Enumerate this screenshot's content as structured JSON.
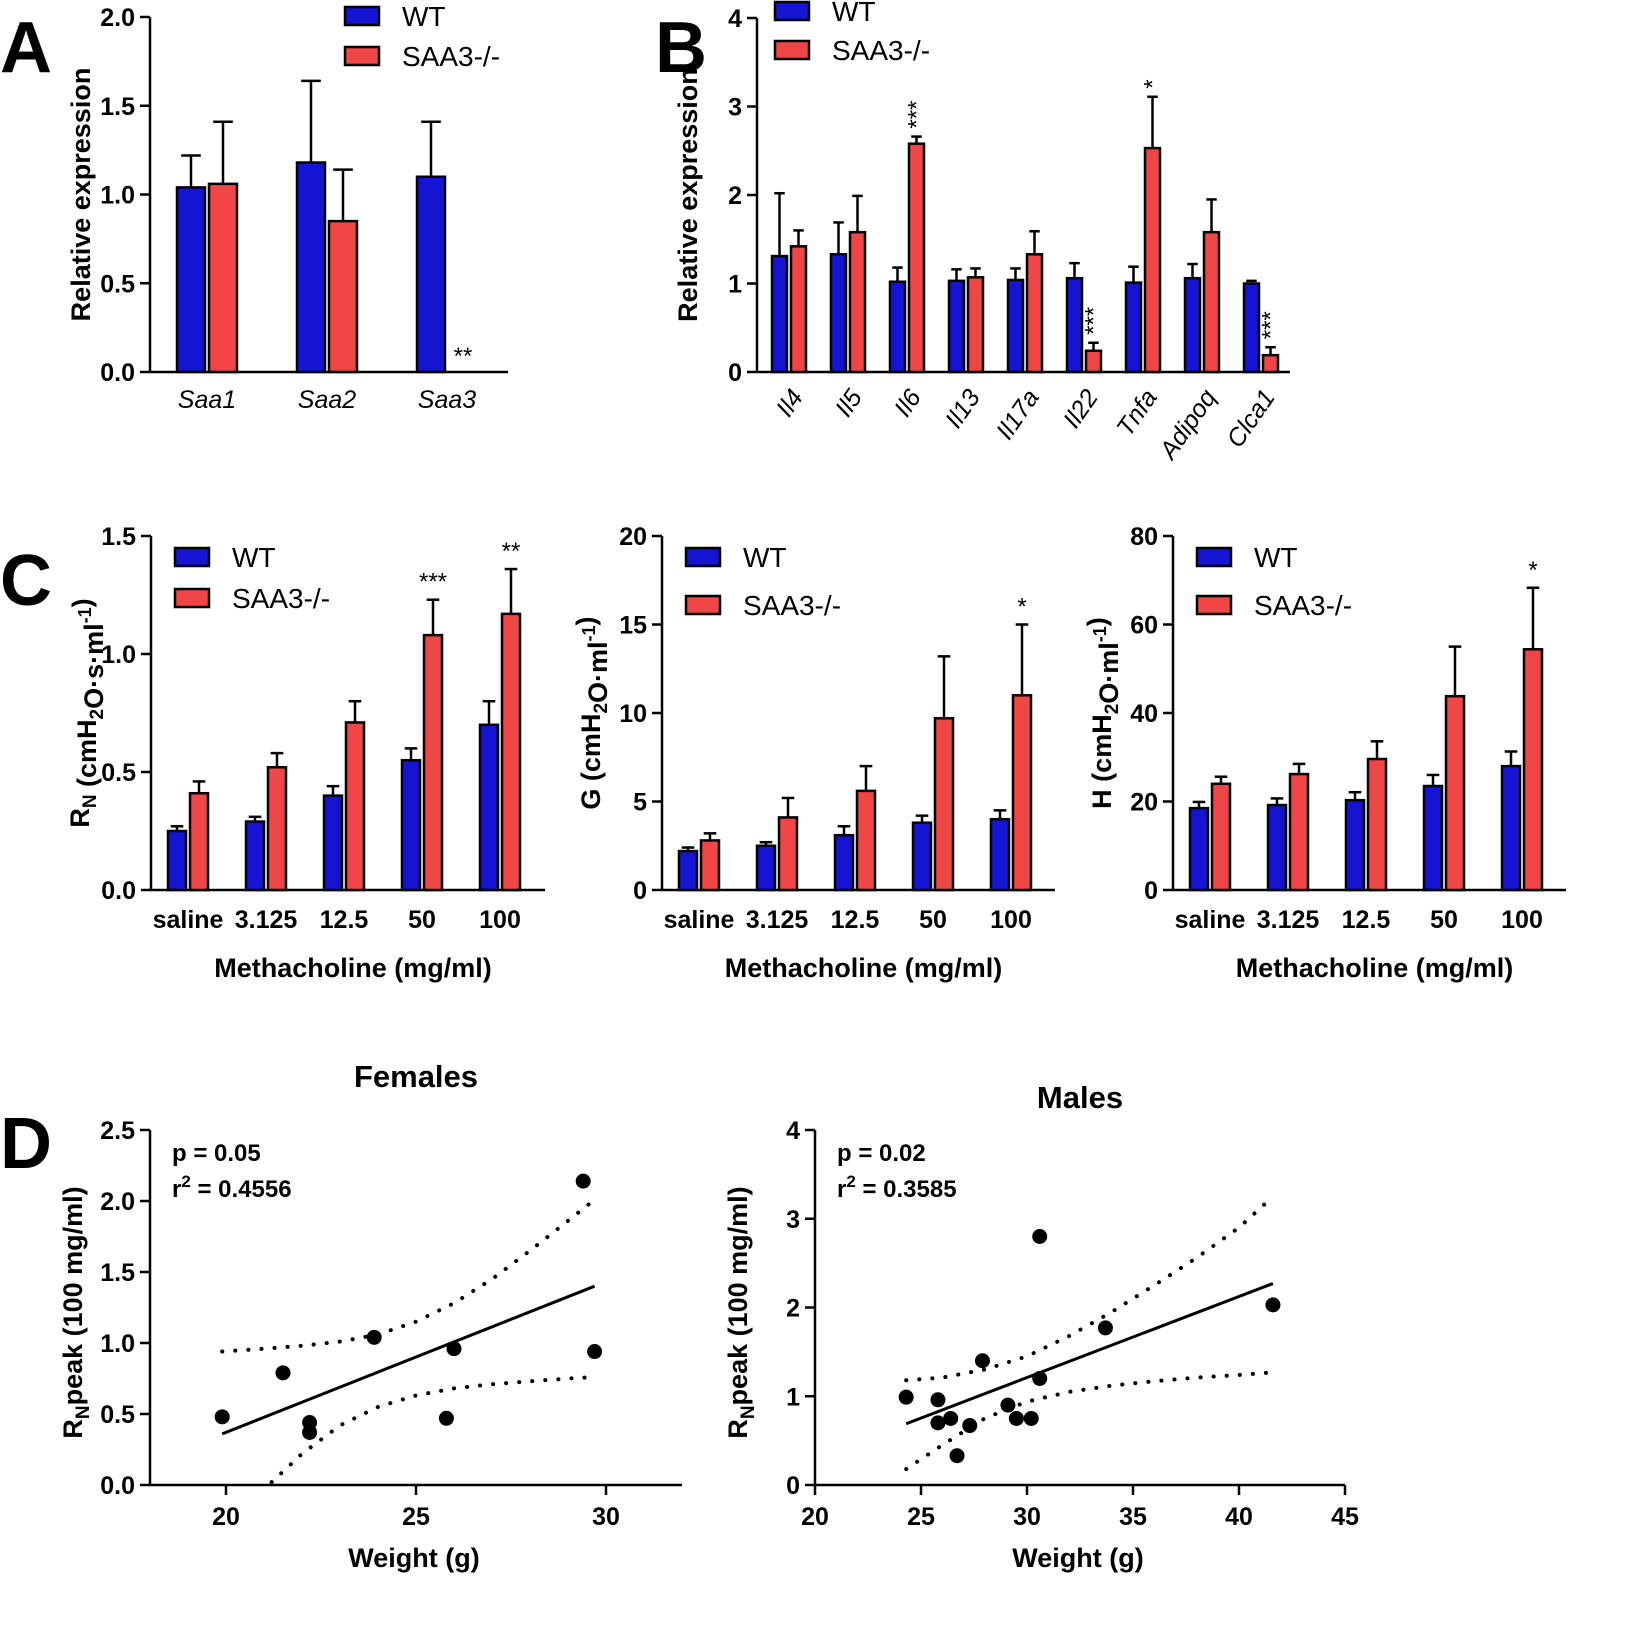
{
  "colors": {
    "wt": "#1414d2",
    "ko": "#f04646",
    "ink": "#000000"
  },
  "panel_labels": [
    "A",
    "B",
    "C",
    "D"
  ],
  "chart_data": [
    {
      "id": "A",
      "type": "bar",
      "ylabel": "Relative expression",
      "ylim": [
        0,
        2.0
      ],
      "yticks": [
        0,
        0.5,
        1.0,
        1.5,
        2.0
      ],
      "ytick_labels": [
        "0.0",
        "0.5",
        "1.0",
        "1.5",
        "2.0"
      ],
      "categories": [
        "Saa1",
        "Saa2",
        "Saa3"
      ],
      "italic_categories": true,
      "legend": [
        "WT",
        "SAA3-/-"
      ],
      "series": [
        {
          "name": "WT",
          "values": [
            1.04,
            1.18,
            1.1
          ],
          "errors": [
            0.18,
            0.46,
            0.31
          ]
        },
        {
          "name": "SAA3-/-",
          "values": [
            1.06,
            0.85,
            0.0
          ],
          "errors": [
            0.35,
            0.29,
            0.0
          ]
        }
      ],
      "significance": [
        {
          "category": 2,
          "series": 1,
          "text": "**"
        }
      ]
    },
    {
      "id": "B",
      "type": "bar",
      "ylabel": "Relative expression",
      "ylim": [
        0,
        4
      ],
      "yticks": [
        0,
        1,
        2,
        3,
        4
      ],
      "ytick_labels": [
        "0",
        "1",
        "2",
        "3",
        "4"
      ],
      "categories": [
        "Il4",
        "Il5",
        "Il6",
        "Il13",
        "Il17a",
        "Il22",
        "Tnfa",
        "Adipoq",
        "Clca1"
      ],
      "italic_categories": true,
      "legend": [
        "WT",
        "SAA3-/-"
      ],
      "series": [
        {
          "name": "WT",
          "values": [
            1.31,
            1.33,
            1.02,
            1.03,
            1.04,
            1.06,
            1.01,
            1.06,
            1.0
          ],
          "errors": [
            0.71,
            0.36,
            0.16,
            0.13,
            0.13,
            0.17,
            0.18,
            0.16,
            0.03
          ]
        },
        {
          "name": "SAA3-/-",
          "values": [
            1.42,
            1.58,
            2.58,
            1.07,
            1.33,
            0.24,
            2.53,
            1.58,
            0.19
          ],
          "errors": [
            0.18,
            0.41,
            0.08,
            0.1,
            0.26,
            0.09,
            0.58,
            0.37,
            0.09
          ]
        }
      ],
      "significance": [
        {
          "category": 2,
          "series": 1,
          "text": "***"
        },
        {
          "category": 5,
          "series": 1,
          "text": "***"
        },
        {
          "category": 6,
          "series": 1,
          "text": "*"
        },
        {
          "category": 8,
          "series": 1,
          "text": "***"
        }
      ]
    },
    {
      "id": "C1",
      "type": "bar",
      "ylabel_main": "R",
      "ylabel_sub": "N",
      "ylabel_rest": " (cmH",
      "ylabel_sub2": "2",
      "ylabel_rest2": "O·s·ml",
      "ylabel_sup": "-1",
      "ylabel_end": ")",
      "xlabel": "Methacholine (mg/ml)",
      "ylim": [
        0,
        1.5
      ],
      "yticks": [
        0,
        0.5,
        1.0,
        1.5
      ],
      "ytick_labels": [
        "0.0",
        "0.5",
        "1.0",
        "1.5"
      ],
      "categories": [
        "saline",
        "3.125",
        "12.5",
        "50",
        "100"
      ],
      "legend": [
        "WT",
        "SAA3-/-"
      ],
      "series": [
        {
          "name": "WT",
          "values": [
            0.25,
            0.29,
            0.4,
            0.55,
            0.7
          ],
          "errors": [
            0.02,
            0.02,
            0.04,
            0.05,
            0.1
          ]
        },
        {
          "name": "SAA3-/-",
          "values": [
            0.41,
            0.52,
            0.71,
            1.08,
            1.17
          ],
          "errors": [
            0.05,
            0.06,
            0.09,
            0.15,
            0.19
          ]
        }
      ],
      "significance": [
        {
          "category": 3,
          "series": 1,
          "text": "***"
        },
        {
          "category": 4,
          "series": 1,
          "text": "**"
        }
      ]
    },
    {
      "id": "C2",
      "type": "bar",
      "ylabel_main": "G (cmH",
      "ylabel_sub": "2",
      "ylabel_rest": "O·ml",
      "ylabel_sup": "-1",
      "ylabel_end": ")",
      "xlabel": "Methacholine (mg/ml)",
      "ylim": [
        0,
        20
      ],
      "yticks": [
        0,
        5,
        10,
        15,
        20
      ],
      "ytick_labels": [
        "0",
        "5",
        "10",
        "15",
        "20"
      ],
      "categories": [
        "saline",
        "3.125",
        "12.5",
        "50",
        "100"
      ],
      "legend": [
        "WT",
        "SAA3-/-"
      ],
      "series": [
        {
          "name": "WT",
          "values": [
            2.2,
            2.5,
            3.1,
            3.8,
            4.0
          ],
          "errors": [
            0.2,
            0.2,
            0.5,
            0.4,
            0.5
          ]
        },
        {
          "name": "SAA3-/-",
          "values": [
            2.8,
            4.1,
            5.6,
            9.7,
            11.0
          ],
          "errors": [
            0.4,
            1.1,
            1.4,
            3.5,
            4.0
          ]
        }
      ],
      "significance": [
        {
          "category": 4,
          "series": 1,
          "text": "*"
        }
      ]
    },
    {
      "id": "C3",
      "type": "bar",
      "ylabel_main": "H (cmH",
      "ylabel_sub": "2",
      "ylabel_rest": "O·ml",
      "ylabel_sup": "-1",
      "ylabel_end": ")",
      "xlabel": "Methacholine (mg/ml)",
      "ylim": [
        0,
        80
      ],
      "yticks": [
        0,
        20,
        40,
        60,
        80
      ],
      "ytick_labels": [
        "0",
        "20",
        "40",
        "60",
        "80"
      ],
      "categories": [
        "saline",
        "3.125",
        "12.5",
        "50",
        "100"
      ],
      "legend": [
        "WT",
        "SAA3-/-"
      ],
      "series": [
        {
          "name": "WT",
          "values": [
            18.5,
            19.2,
            20.3,
            23.5,
            28.0
          ],
          "errors": [
            1.4,
            1.5,
            1.8,
            2.5,
            3.3
          ]
        },
        {
          "name": "SAA3-/-",
          "values": [
            24.0,
            26.2,
            29.6,
            43.8,
            54.4
          ],
          "errors": [
            1.6,
            2.3,
            4.0,
            11.2,
            13.9
          ]
        }
      ],
      "significance": [
        {
          "category": 4,
          "series": 1,
          "text": "*"
        }
      ]
    },
    {
      "id": "D1",
      "type": "scatter",
      "title": "Females",
      "ylabel_main": "R",
      "ylabel_sub": "N",
      "ylabel_rest": "peak (100 mg/ml)",
      "xlabel": "Weight (g)",
      "xlim": [
        18,
        32
      ],
      "xticks": [
        20,
        25,
        30
      ],
      "xtick_labels": [
        "20",
        "25",
        "30"
      ],
      "ylim": [
        0,
        2.5
      ],
      "yticks": [
        0,
        0.5,
        1.0,
        1.5,
        2.0,
        2.5
      ],
      "ytick_labels": [
        "0.0",
        "0.5",
        "1.0",
        "1.5",
        "2.0",
        "2.5"
      ],
      "stat_p": "p = 0.05",
      "stat_r_label": "r",
      "stat_r_sup": "2",
      "stat_r_value": " = 0.4556",
      "points": [
        [
          19.9,
          0.48
        ],
        [
          21.5,
          0.79
        ],
        [
          22.2,
          0.44
        ],
        [
          22.2,
          0.37
        ],
        [
          23.9,
          1.04
        ],
        [
          25.8,
          0.47
        ],
        [
          26.0,
          0.96
        ],
        [
          29.4,
          2.14
        ],
        [
          29.7,
          0.94
        ]
      ],
      "fit": [
        [
          19.9,
          0.36
        ],
        [
          29.7,
          1.4
        ]
      ],
      "ci_upper": [
        [
          19.9,
          0.94
        ],
        [
          21.0,
          0.96
        ],
        [
          22.0,
          0.98
        ],
        [
          23.0,
          1.01
        ],
        [
          24.0,
          1.06
        ],
        [
          25.0,
          1.15
        ],
        [
          26.0,
          1.28
        ],
        [
          27.0,
          1.45
        ],
        [
          28.0,
          1.65
        ],
        [
          29.0,
          1.86
        ],
        [
          29.7,
          2.01
        ]
      ],
      "ci_lower": [
        [
          21.2,
          0.02
        ],
        [
          22.0,
          0.22
        ],
        [
          23.0,
          0.42
        ],
        [
          24.0,
          0.55
        ],
        [
          25.0,
          0.63
        ],
        [
          26.0,
          0.68
        ],
        [
          27.0,
          0.71
        ],
        [
          28.0,
          0.73
        ],
        [
          29.0,
          0.75
        ],
        [
          29.7,
          0.76
        ]
      ]
    },
    {
      "id": "D2",
      "type": "scatter",
      "title": "Males",
      "ylabel_main": "R",
      "ylabel_sub": "N",
      "ylabel_rest": "peak (100 mg/ml)",
      "xlabel": "Weight (g)",
      "xlim": [
        20,
        45
      ],
      "xticks": [
        20,
        25,
        30,
        35,
        40,
        45
      ],
      "xtick_labels": [
        "20",
        "25",
        "30",
        "35",
        "40",
        "45"
      ],
      "ylim": [
        0,
        4
      ],
      "yticks": [
        0,
        1,
        2,
        3,
        4
      ],
      "ytick_labels": [
        "0",
        "1",
        "2",
        "3",
        "4"
      ],
      "stat_p": "p = 0.02",
      "stat_r_label": "r",
      "stat_r_sup": "2",
      "stat_r_value": " = 0.3585",
      "points": [
        [
          24.3,
          0.99
        ],
        [
          25.8,
          0.96
        ],
        [
          25.8,
          0.7
        ],
        [
          26.4,
          0.75
        ],
        [
          26.7,
          0.33
        ],
        [
          27.3,
          0.67
        ],
        [
          27.9,
          1.4
        ],
        [
          29.1,
          0.9
        ],
        [
          29.5,
          0.75
        ],
        [
          30.2,
          0.75
        ],
        [
          30.6,
          2.8
        ],
        [
          30.6,
          1.2
        ],
        [
          33.7,
          1.77
        ],
        [
          41.6,
          2.03
        ]
      ],
      "fit": [
        [
          24.3,
          0.69
        ],
        [
          41.6,
          2.27
        ]
      ],
      "ci_upper": [
        [
          24.3,
          1.18
        ],
        [
          26.0,
          1.21
        ],
        [
          28.0,
          1.3
        ],
        [
          30.0,
          1.45
        ],
        [
          32.0,
          1.68
        ],
        [
          34.0,
          1.95
        ],
        [
          36.0,
          2.25
        ],
        [
          38.0,
          2.56
        ],
        [
          40.0,
          2.9
        ],
        [
          41.6,
          3.25
        ]
      ],
      "ci_lower": [
        [
          24.3,
          0.18
        ],
        [
          26.0,
          0.45
        ],
        [
          28.0,
          0.75
        ],
        [
          30.0,
          0.94
        ],
        [
          32.0,
          1.05
        ],
        [
          34.0,
          1.12
        ],
        [
          36.0,
          1.17
        ],
        [
          38.0,
          1.21
        ],
        [
          40.0,
          1.24
        ],
        [
          41.6,
          1.27
        ]
      ]
    }
  ]
}
